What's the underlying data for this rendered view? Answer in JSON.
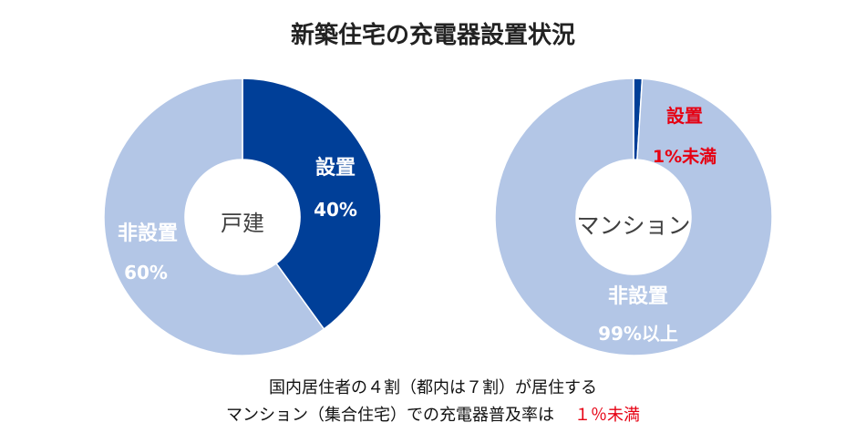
{
  "title": "新築住宅の充電器設置状況",
  "colors": {
    "installed": "#003f98",
    "not_installed": "#b3c6e6",
    "highlight": "#e60012"
  },
  "chart_data": [
    {
      "type": "pie",
      "subtype": "donut",
      "center_label": "戸建",
      "slices": [
        {
          "name": "設置",
          "value": 40,
          "value_label": "40%",
          "color": "#003f98",
          "label_color": "#ffffff"
        },
        {
          "name": "非設置",
          "value": 60,
          "value_label": "60%",
          "color": "#b3c6e6",
          "label_color": "#ffffff"
        }
      ]
    },
    {
      "type": "pie",
      "subtype": "donut",
      "center_label": "マンション",
      "slices": [
        {
          "name": "設置",
          "value": 1,
          "value_label": "1%未満",
          "color": "#003f98",
          "label_color": "#e60012"
        },
        {
          "name": "非設置",
          "value": 99,
          "value_label": "99%以上",
          "color": "#b3c6e6",
          "label_color": "#ffffff"
        }
      ]
    }
  ],
  "caption": {
    "line1": "国内居住者の４割（都内は７割）が居住する",
    "line2": "マンション（集合住宅）での充電器普及率は",
    "line2_highlight": "１％未満"
  }
}
